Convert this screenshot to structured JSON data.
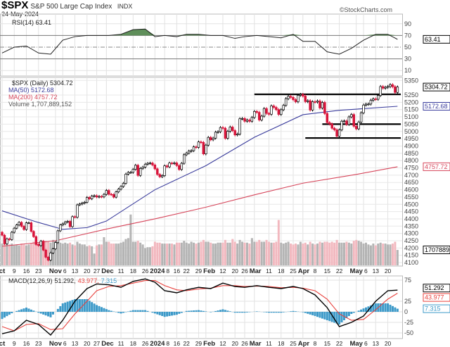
{
  "header": {
    "symbol": "$SPX",
    "name": "S&P 500 Large Cap Index",
    "exchange": "INDX",
    "date": "24-May-2024",
    "brand": "©StockCharts.com"
  },
  "colors": {
    "up": "#000000",
    "down": "#d8143a",
    "ma50": "#3a3c9c",
    "ma200": "#d6455a",
    "vol_up": "#b4b4b4",
    "vol_down": "#f2b8bf",
    "hist": "#3d9ac9",
    "signal": "#e8423e",
    "rsi_fill": "#5f8f5a"
  },
  "chart_data": [
    {
      "type": "line",
      "panel": "rsi",
      "legend": "RSI(14) 63.41",
      "last_label": "63.41",
      "ylim": [
        0,
        100
      ],
      "y_ticks": [
        "90",
        "70",
        "50",
        "30",
        "10"
      ],
      "overbought": 70,
      "oversold": 30,
      "sample_dates": [
        "2023-10-02",
        "2023-10-09",
        "2023-10-16",
        "2023-10-23",
        "2023-10-30",
        "2023-11-06",
        "2023-11-13",
        "2023-11-20",
        "2023-11-27",
        "2023-12-04",
        "2023-12-11",
        "2023-12-18",
        "2023-12-26",
        "2024-01-02",
        "2024-01-08",
        "2024-01-16",
        "2024-01-22",
        "2024-01-29",
        "2024-02-05",
        "2024-02-12",
        "2024-02-20",
        "2024-02-26",
        "2024-03-04",
        "2024-03-11",
        "2024-03-18",
        "2024-03-25",
        "2024-04-01",
        "2024-04-08",
        "2024-04-15",
        "2024-04-22",
        "2024-04-29",
        "2024-05-06",
        "2024-05-13",
        "2024-05-20",
        "2024-05-24"
      ],
      "values": [
        40,
        50,
        52,
        40,
        38,
        62,
        68,
        70,
        70,
        70,
        72,
        80,
        81,
        68,
        70,
        68,
        72,
        72,
        70,
        70,
        65,
        68,
        70,
        68,
        66,
        72,
        60,
        60,
        42,
        38,
        48,
        62,
        72,
        72,
        63.41
      ]
    },
    {
      "type": "candlestick",
      "panel": "price",
      "legend": {
        "price": "$SPX (Daily) 5304.72",
        "ma50": "MA(50) 5172.68",
        "ma200": "MA(200) 4757.72",
        "volume": "Volume 1,707,889,152"
      },
      "last_labels": {
        "price": "5304.72",
        "ma50": "5172.68",
        "ma200": "4757.72",
        "volume": "1707889"
      },
      "ylim": [
        4075,
        5375
      ],
      "y_ticks": [
        "5350",
        "5250",
        "5200",
        "5150",
        "5100",
        "5050",
        "5000",
        "4950",
        "4900",
        "4850",
        "4800",
        "4750",
        "4700",
        "4650",
        "4600",
        "4550",
        "4500",
        "4450",
        "4400",
        "4350",
        "4300",
        "4250",
        "4200",
        "4150",
        "4100"
      ],
      "trading_days": {
        "2023-10": [
          2,
          3,
          4,
          5,
          6,
          9,
          10,
          11,
          12,
          13,
          16,
          17,
          18,
          19,
          20,
          23,
          24,
          25,
          26,
          27,
          30,
          31
        ],
        "2023-11": [
          1,
          2,
          3,
          6,
          7,
          8,
          9,
          10,
          13,
          14,
          15,
          16,
          17,
          20,
          21,
          22,
          24,
          27,
          28,
          29,
          30
        ],
        "2023-12": [
          1,
          4,
          5,
          6,
          7,
          8,
          11,
          12,
          13,
          14,
          15,
          18,
          19,
          20,
          21,
          22,
          26,
          27,
          28,
          29
        ],
        "2024-01": [
          2,
          3,
          4,
          5,
          8,
          9,
          10,
          11,
          12,
          16,
          17,
          18,
          19,
          22,
          23,
          24,
          25,
          26,
          29,
          30,
          31
        ],
        "2024-02": [
          1,
          2,
          5,
          6,
          7,
          8,
          9,
          12,
          13,
          14,
          15,
          16,
          20,
          21,
          22,
          23,
          26,
          27,
          28,
          29
        ],
        "2024-03": [
          1,
          4,
          5,
          6,
          7,
          8,
          11,
          12,
          13,
          14,
          15,
          18,
          19,
          20,
          21,
          22,
          25,
          26,
          27,
          28
        ],
        "2024-04": [
          1,
          2,
          3,
          4,
          5,
          8,
          9,
          10,
          11,
          12,
          15,
          16,
          17,
          18,
          19,
          22,
          23,
          24,
          25,
          26,
          29,
          30
        ],
        "2024-05": [
          1,
          2,
          3,
          6,
          7,
          8,
          9,
          10,
          13,
          14,
          15,
          16,
          17,
          20,
          21,
          22,
          23,
          24
        ]
      },
      "close": [
        4288,
        4229,
        4263,
        4258,
        4308,
        4336,
        4358,
        4376,
        4349,
        4327,
        4373,
        4373,
        4314,
        4278,
        4224,
        4217,
        4247,
        4186,
        4137,
        4117,
        4166,
        4194,
        4237,
        4318,
        4358,
        4366,
        4378,
        4383,
        4347,
        4415,
        4411,
        4496,
        4502,
        4508,
        4514,
        4547,
        4538,
        4556,
        4559,
        4550,
        4554,
        4551,
        4568,
        4595,
        4569,
        4567,
        4549,
        4585,
        4604,
        4622,
        4644,
        4707,
        4719,
        4719,
        4740,
        4768,
        4698,
        4746,
        4755,
        4775,
        4781,
        4783,
        4770,
        4743,
        4705,
        4689,
        4697,
        4764,
        4757,
        4783,
        4780,
        4784,
        4766,
        4739,
        4781,
        4840,
        4851,
        4865,
        4868,
        4894,
        4891,
        4928,
        4925,
        4846,
        4906,
        4959,
        4943,
        4954,
        4995,
        4998,
        5027,
        5022,
        4953,
        5001,
        5030,
        5006,
        4976,
        4982,
        5087,
        5089,
        5070,
        5078,
        5070,
        5096,
        5137,
        5131,
        5079,
        5105,
        5157,
        5124,
        5118,
        5175,
        5165,
        5150,
        5117,
        5149,
        5179,
        5225,
        5241,
        5234,
        5218,
        5204,
        5248,
        5254,
        5243,
        5205,
        5211,
        5147,
        5204,
        5202,
        5209,
        5161,
        5199,
        5123,
        5061,
        5051,
        5022,
        5011,
        4967,
        5011,
        5070,
        5072,
        5048,
        5100,
        5116,
        5036,
        5018,
        5064,
        5128,
        5181,
        5187,
        5188,
        5214,
        5223,
        5221,
        5247,
        5308,
        5297,
        5303,
        5308,
        5321,
        5307,
        5268,
        5304.72
      ],
      "volume_billions": [
        2.4,
        2.5,
        2.3,
        2.3,
        2.4,
        2.2,
        2.3,
        2.2,
        2.4,
        2.3,
        2.2,
        2.3,
        2.4,
        2.6,
        2.6,
        2.5,
        2.4,
        2.6,
        2.7,
        2.6,
        2.5,
        2.8,
        2.7,
        2.6,
        2.5,
        2.4,
        2.5,
        2.4,
        2.5,
        2.3,
        2.2,
        2.6,
        2.4,
        2.3,
        2.3,
        2.1,
        2.2,
        2.1,
        1.3,
        2.2,
        2.3,
        2.3,
        3.1,
        2.6,
        2.6,
        2.4,
        2.4,
        2.4,
        2.4,
        2.5,
        2.6,
        2.9,
        3.0,
        5.6,
        2.6,
        2.6,
        2.7,
        2.5,
        2.3,
        1.9,
        2.0,
        2.0,
        2.1,
        2.6,
        2.5,
        2.5,
        2.4,
        2.4,
        2.4,
        2.4,
        2.4,
        2.3,
        2.5,
        2.5,
        2.5,
        2.7,
        2.5,
        2.4,
        2.6,
        2.5,
        2.4,
        2.5,
        2.6,
        2.8,
        2.6,
        2.6,
        2.5,
        2.4,
        2.4,
        2.5,
        2.5,
        2.5,
        2.8,
        2.5,
        2.5,
        2.9,
        2.6,
        2.4,
        2.8,
        2.6,
        2.5,
        2.5,
        2.4,
        3.0,
        2.6,
        2.6,
        2.8,
        2.6,
        2.6,
        2.8,
        2.6,
        2.5,
        2.5,
        2.6,
        5.0,
        2.5,
        2.4,
        2.5,
        2.6,
        2.4,
        2.3,
        2.4,
        2.3,
        2.6,
        2.4,
        2.5,
        2.3,
        2.6,
        2.4,
        2.3,
        2.4,
        2.6,
        2.5,
        2.6,
        2.6,
        2.5,
        2.6,
        2.5,
        2.8,
        2.5,
        2.5,
        2.5,
        2.6,
        2.5,
        2.4,
        2.7,
        2.8,
        2.7,
        2.6,
        2.4,
        2.5,
        2.3,
        2.2,
        2.4,
        2.2,
        2.4,
        2.5,
        2.4,
        2.4,
        2.3,
        2.3,
        2.4,
        2.6,
        1.7
      ],
      "ma50": {
        "dates": [
          "2023-10-02",
          "2023-10-20",
          "2023-11-06",
          "2023-11-20",
          "2023-12-01",
          "2024-01-02",
          "2024-02-01",
          "2024-03-01",
          "2024-04-01",
          "2024-04-22",
          "2024-05-24"
        ],
        "values": [
          4455,
          4380,
          4328,
          4340,
          4385,
          4600,
          4765,
          4960,
          5115,
          5145,
          5172.68
        ]
      },
      "ma200": {
        "dates": [
          "2023-10-02",
          "2023-11-01",
          "2023-12-01",
          "2024-01-02",
          "2024-02-01",
          "2024-03-01",
          "2024-04-01",
          "2024-05-01",
          "2024-05-24"
        ],
        "values": [
          4212,
          4250,
          4330,
          4400,
          4480,
          4565,
          4645,
          4705,
          4757.72
        ]
      },
      "support_lines": [
        {
          "value": 5255,
          "from": "2024-03-01"
        },
        {
          "value": 5050,
          "from": "2024-04-11"
        },
        {
          "value": 4955,
          "from": "2024-04-02"
        }
      ]
    },
    {
      "type": "line",
      "panel": "macd",
      "legend": {
        "name": "MACD(12,26,9)",
        "macd": "51.292,",
        "signal": "43.977,",
        "hist": "7.315"
      },
      "last_labels": {
        "macd": "51.292",
        "signal": "43.977",
        "hist": "7.315"
      },
      "ylim": [
        -65,
        90
      ],
      "y_ticks": [
        "75",
        "25",
        "0",
        "-25",
        "-50"
      ],
      "macd": [
        -52,
        -45,
        -20,
        -30,
        -55,
        -20,
        25,
        55,
        66,
        64,
        58,
        72,
        78,
        70,
        50,
        45,
        52,
        58,
        55,
        68,
        60,
        58,
        62,
        58,
        55,
        60,
        55,
        40,
        10,
        -35,
        -25,
        -10,
        25,
        50,
        51.292
      ],
      "signal": [
        -35,
        -45,
        -30,
        -28,
        -42,
        -40,
        -5,
        25,
        50,
        60,
        62,
        68,
        74,
        74,
        62,
        52,
        50,
        54,
        56,
        62,
        62,
        60,
        61,
        60,
        57,
        58,
        56,
        50,
        30,
        -5,
        -20,
        -18,
        5,
        30,
        43.977
      ]
    }
  ],
  "x_axis": {
    "labels": [
      {
        "text": "ct",
        "date": "2023-10-02",
        "bold": true
      },
      {
        "text": "9",
        "date": "2023-10-09"
      },
      {
        "text": "16",
        "date": "2023-10-16"
      },
      {
        "text": "23",
        "date": "2023-10-23"
      },
      {
        "text": "Nov",
        "date": "2023-11-01",
        "bold": true
      },
      {
        "text": "6",
        "date": "2023-11-06"
      },
      {
        "text": "13",
        "date": "2023-11-13"
      },
      {
        "text": "20",
        "date": "2023-11-20"
      },
      {
        "text": "27",
        "date": "2023-11-27"
      },
      {
        "text": "Dec",
        "date": "2023-12-01",
        "bold": true
      },
      {
        "text": "11",
        "date": "2023-12-11"
      },
      {
        "text": "18",
        "date": "2023-12-18"
      },
      {
        "text": "26",
        "date": "2023-12-26"
      },
      {
        "text": "2024",
        "date": "2024-01-02",
        "bold": true
      },
      {
        "text": "8",
        "date": "2024-01-08"
      },
      {
        "text": "16",
        "date": "2024-01-16"
      },
      {
        "text": "22",
        "date": "2024-01-22"
      },
      {
        "text": "29",
        "date": "2024-01-29"
      },
      {
        "text": "Feb",
        "date": "2024-02-01",
        "bold": true
      },
      {
        "text": "12",
        "date": "2024-02-12"
      },
      {
        "text": "20",
        "date": "2024-02-20"
      },
      {
        "text": "26",
        "date": "2024-02-26"
      },
      {
        "text": "Mar",
        "date": "2024-03-01",
        "bold": true
      },
      {
        "text": "11",
        "date": "2024-03-11"
      },
      {
        "text": "18",
        "date": "2024-03-18"
      },
      {
        "text": "25",
        "date": "2024-03-25"
      },
      {
        "text": "Apr",
        "date": "2024-04-01",
        "bold": true
      },
      {
        "text": "8",
        "date": "2024-04-08"
      },
      {
        "text": "15",
        "date": "2024-04-15"
      },
      {
        "text": "22",
        "date": "2024-04-22"
      },
      {
        "text": "May",
        "date": "2024-05-01",
        "bold": true
      },
      {
        "text": "6",
        "date": "2024-05-06"
      },
      {
        "text": "13",
        "date": "2024-05-13"
      },
      {
        "text": "20",
        "date": "2024-05-20"
      }
    ]
  }
}
